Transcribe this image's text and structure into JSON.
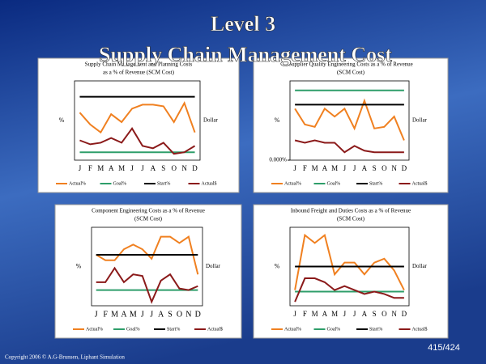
{
  "slide": {
    "title": "Level 3",
    "subtitle": "Supply Chain Management Cost",
    "copyright": "Copyright 2006 © A.G-Brunsen, Liphant Simulation",
    "page": "415/424"
  },
  "chart_data": [
    {
      "type": "line",
      "title": [
        "Supply Chain Management and Planning Costs",
        "as a % of Revenue (SCM Cost)"
      ],
      "y_label": "%",
      "y2_label": "Dollar",
      "categories": [
        "J",
        "F",
        "M",
        "A",
        "M",
        "J",
        "J",
        "A",
        "S",
        "O",
        "N",
        "D"
      ],
      "ylim": [
        0,
        100
      ],
      "series": [
        {
          "name": "Actual%",
          "color": "#f08020",
          "values": [
            60,
            45,
            35,
            58,
            48,
            65,
            70,
            70,
            68,
            48,
            72,
            35
          ]
        },
        {
          "name": "Goal%",
          "color": "#2e9e6a",
          "values": [
            10,
            10,
            10,
            10,
            10,
            10,
            10,
            10,
            10,
            10,
            10,
            10
          ]
        },
        {
          "name": "Start%",
          "color": "#000000",
          "values": [
            80,
            80,
            80,
            80,
            80,
            80,
            80,
            80,
            80,
            80,
            80,
            80
          ]
        },
        {
          "name": "Actual$",
          "color": "#8b1a1a",
          "values": [
            25,
            20,
            22,
            28,
            22,
            40,
            18,
            15,
            22,
            8,
            10,
            18
          ]
        }
      ]
    },
    {
      "type": "line",
      "title": [
        "Supplier Quality Engineering Costs as a % of Revenue",
        "(SCM Cost)"
      ],
      "y_label": "%",
      "y2_label": "Dollar",
      "categories": [
        "J",
        "F",
        "M",
        "A",
        "M",
        "J",
        "J",
        "A",
        "S",
        "O",
        "N",
        "D"
      ],
      "ylim": [
        0,
        100
      ],
      "yticks": [
        {
          "value": 0,
          "label": "0.000%"
        }
      ],
      "series": [
        {
          "name": "Actual%",
          "color": "#f08020",
          "values": [
            65,
            45,
            42,
            65,
            55,
            65,
            40,
            75,
            40,
            42,
            55,
            25
          ]
        },
        {
          "name": "Goal%",
          "color": "#2e9e6a",
          "values": [
            88,
            88,
            88,
            88,
            88,
            88,
            88,
            88,
            88,
            88,
            88,
            88
          ]
        },
        {
          "name": "Start%",
          "color": "#000000",
          "values": [
            70,
            70,
            70,
            70,
            70,
            70,
            70,
            70,
            70,
            70,
            70,
            70
          ]
        },
        {
          "name": "Actual$",
          "color": "#8b1a1a",
          "values": [
            25,
            22,
            25,
            22,
            22,
            10,
            18,
            12,
            10,
            10,
            10,
            10
          ]
        }
      ]
    },
    {
      "type": "line",
      "title": [
        "Component Engineering Costs as a % of Revenue",
        "(SCM Cost)"
      ],
      "y_label": "%",
      "y2_label": "Dollar",
      "categories": [
        "J",
        "F",
        "M",
        "A",
        "M",
        "J",
        "J",
        "A",
        "S",
        "O",
        "N",
        "D"
      ],
      "ylim": [
        0,
        100
      ],
      "series": [
        {
          "name": "Actual%",
          "color": "#f08020",
          "values": [
            65,
            58,
            58,
            72,
            78,
            72,
            60,
            88,
            88,
            80,
            88,
            40
          ]
        },
        {
          "name": "Goal%",
          "color": "#2e9e6a",
          "values": [
            20,
            20,
            20,
            20,
            20,
            20,
            20,
            20,
            20,
            20,
            20,
            20
          ]
        },
        {
          "name": "Start%",
          "color": "#000000",
          "values": [
            65,
            65,
            65,
            65,
            65,
            65,
            65,
            65,
            65,
            65,
            65,
            65
          ]
        },
        {
          "name": "Actual$",
          "color": "#8b1a1a",
          "values": [
            30,
            30,
            48,
            30,
            40,
            38,
            5,
            32,
            40,
            22,
            20,
            25
          ]
        }
      ]
    },
    {
      "type": "line",
      "title": [
        "Inbound Freight and Duties Costs as a % of Revenue",
        "(SCM Cost)"
      ],
      "y_label": "%",
      "y2_label": "Dollar",
      "categories": [
        "J",
        "F",
        "M",
        "A",
        "M",
        "J",
        "J",
        "A",
        "S",
        "O",
        "N",
        "D"
      ],
      "ylim": [
        0,
        100
      ],
      "series": [
        {
          "name": "Actual%",
          "color": "#f08020",
          "values": [
            20,
            90,
            80,
            90,
            40,
            55,
            55,
            40,
            55,
            60,
            45,
            20
          ]
        },
        {
          "name": "Goal%",
          "color": "#2e9e6a",
          "values": [
            18,
            18,
            18,
            18,
            18,
            18,
            18,
            18,
            18,
            18,
            18,
            18
          ]
        },
        {
          "name": "Start%",
          "color": "#000000",
          "values": [
            50,
            50,
            50,
            50,
            50,
            50,
            50,
            50,
            50,
            50,
            50,
            50
          ]
        },
        {
          "name": "Actual$",
          "color": "#8b1a1a",
          "values": [
            5,
            35,
            35,
            30,
            20,
            25,
            20,
            15,
            18,
            15,
            10,
            10
          ]
        }
      ]
    }
  ]
}
